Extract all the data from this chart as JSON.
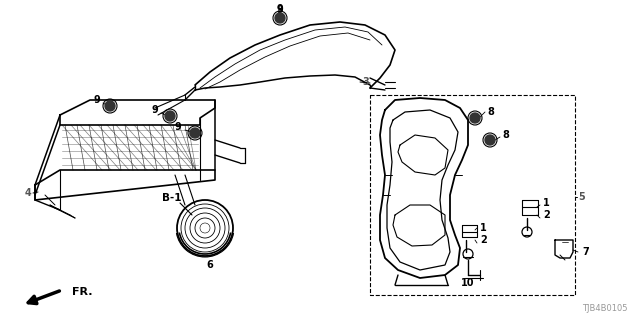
{
  "bg_color": "#ffffff",
  "ref_code": "TJB4B0105",
  "lw_main": 1.0,
  "lw_thin": 0.6,
  "lw_thick": 1.4
}
